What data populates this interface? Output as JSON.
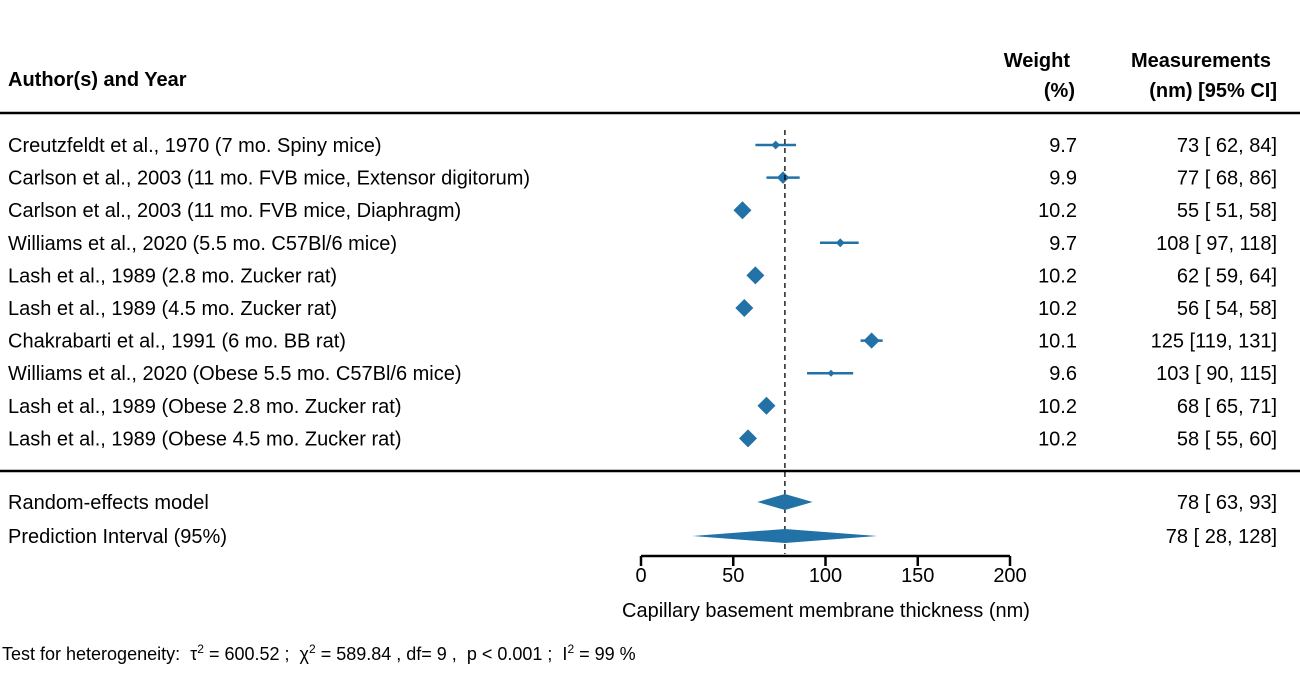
{
  "chart_data": {
    "type": "forest",
    "headers": {
      "study": "Author(s) and Year",
      "weight": [
        "Weight",
        "(%)"
      ],
      "estimate": [
        "Measurements",
        "(nm) [95% CI]"
      ]
    },
    "studies": [
      {
        "label": "Creutzfeldt et al., 1970 (7 mo. Spiny mice)",
        "weight": "9.7",
        "ci_text": "73 [ 62,  84]",
        "estimate": 73,
        "lower": 62,
        "upper": 84
      },
      {
        "label": "Carlson et al., 2003 (11 mo. FVB mice, Extensor digitorum)",
        "weight": "9.9",
        "ci_text": "77 [ 68,  86]",
        "estimate": 77,
        "lower": 68,
        "upper": 86
      },
      {
        "label": "Carlson et al., 2003 (11 mo. FVB mice, Diaphragm)",
        "weight": "10.2",
        "ci_text": "55 [ 51,  58]",
        "estimate": 55,
        "lower": 51,
        "upper": 58
      },
      {
        "label": "Williams et al., 2020 (5.5 mo. C57Bl/6 mice)",
        "weight": "9.7",
        "ci_text": "108 [ 97, 118]",
        "estimate": 108,
        "lower": 97,
        "upper": 118
      },
      {
        "label": "Lash et al., 1989 (2.8 mo. Zucker rat)",
        "weight": "10.2",
        "ci_text": "62 [ 59,  64]",
        "estimate": 62,
        "lower": 59,
        "upper": 64
      },
      {
        "label": "Lash et al., 1989 (4.5 mo. Zucker rat)",
        "weight": "10.2",
        "ci_text": "56 [ 54,  58]",
        "estimate": 56,
        "lower": 54,
        "upper": 58
      },
      {
        "label": "Chakrabarti et al., 1991 (6 mo. BB rat)",
        "weight": "10.1",
        "ci_text": "125 [119, 131]",
        "estimate": 125,
        "lower": 119,
        "upper": 131
      },
      {
        "label": "Williams et al., 2020 (Obese 5.5 mo. C57Bl/6 mice)",
        "weight": "9.6",
        "ci_text": "103 [ 90, 115]",
        "estimate": 103,
        "lower": 90,
        "upper": 115
      },
      {
        "label": "Lash et al., 1989 (Obese 2.8 mo. Zucker rat)",
        "weight": "10.2",
        "ci_text": "68 [ 65,  71]",
        "estimate": 68,
        "lower": 65,
        "upper": 71
      },
      {
        "label": "Lash et al., 1989 (Obese 4.5 mo. Zucker rat)",
        "weight": "10.2",
        "ci_text": "58 [ 55,  60]",
        "estimate": 58,
        "lower": 55,
        "upper": 60
      }
    ],
    "summary": [
      {
        "label": "Random-effects model",
        "ci_text": "78 [ 63,  93]",
        "estimate": 78,
        "lower": 63,
        "upper": 93
      },
      {
        "label": "Prediction Interval (95%)",
        "ci_text": "78 [ 28, 128]",
        "estimate": 78,
        "lower": 28,
        "upper": 128
      }
    ],
    "reference_line": 78,
    "xlim": [
      0,
      200
    ],
    "xticks": [
      0,
      50,
      100,
      150,
      200
    ],
    "xlabel": "Capillary basement membrane thickness (nm)",
    "marker_color": "#2272a8",
    "heterogeneity": {
      "prefix": "Test for heterogeneity:",
      "tau_symbol": "τ",
      "tau2": "= 600.52 ;",
      "chi_symbol": "χ",
      "chi2": "= 589.84 , df= 9 ,",
      "p": "p < 0.001 ;",
      "i_symbol": "I",
      "i2": "= 99 %"
    }
  }
}
